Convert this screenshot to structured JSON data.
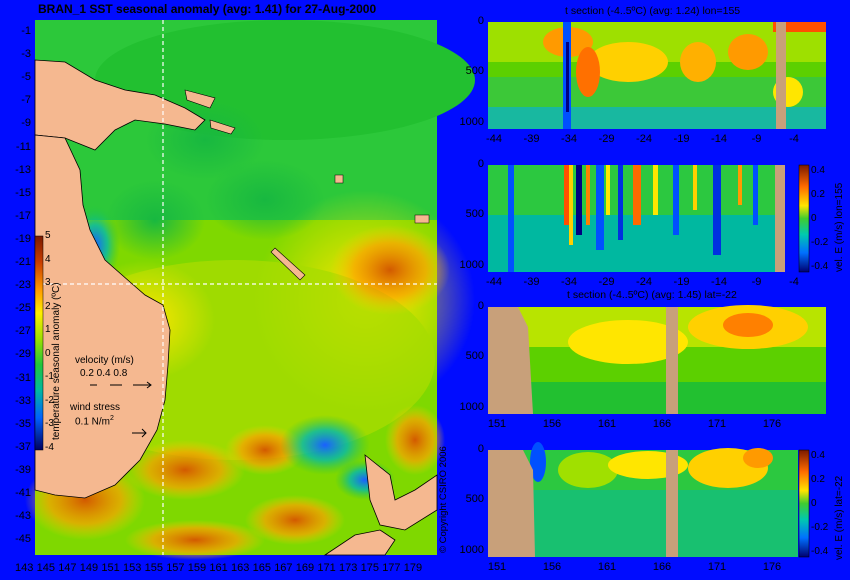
{
  "main_map": {
    "title": "BRAN_1  SST seasonal anomaly  (avg: 1.41) for 27-Aug-2000",
    "lat_ticks": [
      "-1",
      "-3",
      "-5",
      "-7",
      "-9",
      "-11",
      "-13",
      "-15",
      "-17",
      "-19",
      "-21",
      "-23",
      "-25",
      "-27",
      "-29",
      "-31",
      "-33",
      "-35",
      "-37",
      "-39",
      "-41",
      "-43",
      "-45"
    ],
    "lon_ticks": [
      "143",
      "145",
      "147",
      "149",
      "151",
      "153",
      "155",
      "157",
      "159",
      "161",
      "163",
      "165",
      "167",
      "169",
      "171",
      "173",
      "175",
      "177",
      "179"
    ],
    "colorbar_ticks": [
      "5",
      "4",
      "3",
      "2",
      "1",
      "0",
      "-1",
      "-2",
      "-3",
      "-4"
    ],
    "colorbar_label": "temperature seasonal anomaly (ºC)",
    "velocity_label": "velocity (m/s)",
    "velocity_scale": "0.2 0.4 0.8",
    "wind_label": "wind stress",
    "wind_scale": "0.1 N/m",
    "wind_scale_sup": "2",
    "crosshair": {
      "lon": 155,
      "lat": -22
    }
  },
  "copyright": "© Copyright CSIRO 2006",
  "panel1": {
    "title": "t section (-4..5ºC) (avg: 1.24) lon=155",
    "x_ticks": [
      "-44",
      "-39",
      "-34",
      "-29",
      "-24",
      "-19",
      "-14",
      "-9",
      "-4"
    ],
    "y_ticks": [
      "0",
      "500",
      "1000"
    ]
  },
  "panel2": {
    "x_ticks": [
      "-44",
      "-39",
      "-34",
      "-29",
      "-24",
      "-19",
      "-14",
      "-9",
      "-4"
    ],
    "y_ticks": [
      "0",
      "500",
      "1000"
    ],
    "colorbar_label": "vel. E (m/s) lon=155",
    "colorbar_ticks": [
      "0.4",
      "0.2",
      "0",
      "-0.2",
      "-0.4"
    ]
  },
  "panel3": {
    "title": "t section (-4..5ºC) (avg: 1.45) lat=-22",
    "x_ticks": [
      "151",
      "156",
      "161",
      "166",
      "171",
      "176"
    ],
    "y_ticks": [
      "0",
      "500",
      "1000"
    ]
  },
  "panel4": {
    "x_ticks": [
      "151",
      "156",
      "161",
      "166",
      "171",
      "176"
    ],
    "y_ticks": [
      "0",
      "500",
      "1000"
    ],
    "colorbar_label": "vel. E (m/s) lat=-22",
    "colorbar_ticks": [
      "0.4",
      "0.2",
      "0",
      "-0.2",
      "-0.4"
    ]
  },
  "chart_data": [
    {
      "type": "heatmap",
      "title": "BRAN_1  SST seasonal anomaly  (avg: 1.41) for 27-Aug-2000",
      "x": [
        143,
        145,
        147,
        149,
        151,
        153,
        155,
        157,
        159,
        161,
        163,
        165,
        167,
        169,
        171,
        173,
        175,
        177,
        179
      ],
      "y": [
        -1,
        -3,
        -5,
        -7,
        -9,
        -11,
        -13,
        -15,
        -17,
        -19,
        -21,
        -23,
        -25,
        -27,
        -29,
        -31,
        -33,
        -35,
        -37,
        -39,
        -41,
        -43,
        -45
      ],
      "xlim": [
        143,
        180
      ],
      "ylim": [
        -45,
        0
      ],
      "colorbar": {
        "label": "temperature seasonal anomaly (ºC)",
        "range": [
          -4,
          5
        ]
      },
      "average": 1.41,
      "date": "27-Aug-2000"
    },
    {
      "type": "heatmap",
      "title": "t section (-4..5ºC) (avg: 1.24) lon=155",
      "x": [
        -44,
        -39,
        -34,
        -29,
        -24,
        -19,
        -14,
        -9,
        -4
      ],
      "y": [
        0,
        500,
        1000
      ],
      "xlim": [
        -45,
        0
      ],
      "ylim": [
        1050,
        0
      ],
      "value_range": [
        -4,
        5
      ],
      "average": 1.24
    },
    {
      "type": "heatmap",
      "x": [
        -44,
        -39,
        -34,
        -29,
        -24,
        -19,
        -14,
        -9,
        -4
      ],
      "y": [
        0,
        500,
        1000
      ],
      "xlim": [
        -45,
        0
      ],
      "ylim": [
        1050,
        0
      ],
      "colorbar": {
        "label": "vel. E (m/s) lon=155",
        "range": [
          -0.4,
          0.4
        ]
      }
    },
    {
      "type": "heatmap",
      "title": "t section (-4..5ºC) (avg: 1.45) lat=-22",
      "x": [
        151,
        156,
        161,
        166,
        171,
        176
      ],
      "y": [
        0,
        500,
        1000
      ],
      "xlim": [
        149.5,
        180
      ],
      "ylim": [
        1050,
        0
      ],
      "value_range": [
        -4,
        5
      ],
      "average": 1.45
    },
    {
      "type": "heatmap",
      "x": [
        151,
        156,
        161,
        166,
        171,
        176
      ],
      "y": [
        0,
        500,
        1000
      ],
      "xlim": [
        149.5,
        180
      ],
      "ylim": [
        1050,
        0
      ],
      "colorbar": {
        "label": "vel. E (m/s) lat=-22",
        "range": [
          -0.4,
          0.4
        ]
      }
    }
  ]
}
